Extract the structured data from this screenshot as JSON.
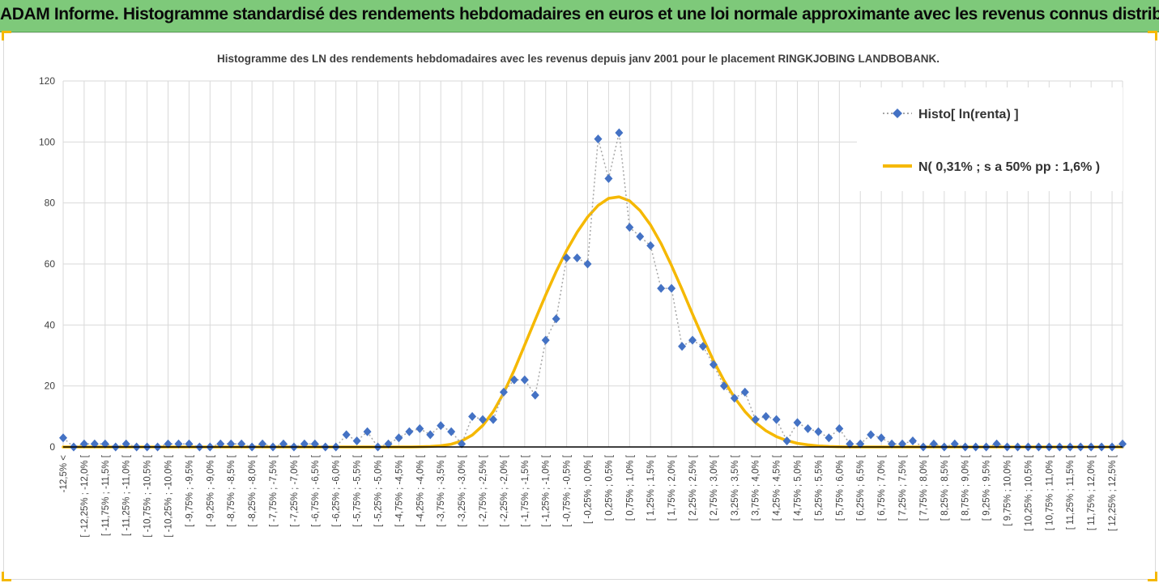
{
  "banner": {
    "title": "ADAM Informe. Histogramme standardisé des rendements hebdomadaires en euros et une loi normale approximante avec les revenus connus distribués"
  },
  "colors": {
    "banner": "#7ec97a",
    "frame_accent": "#f5b800",
    "histo": "#4472c4",
    "normal": "#f5b800",
    "grid": "#d9d9d9"
  },
  "chart_data": {
    "type": "line",
    "title": "Histogramme des LN des rendements hebdomadaires avec les revenus depuis janv 2001 pour le placement RINGKJOBING LANDBOBANK.",
    "xlabel": "",
    "ylabel": "",
    "ylim": [
      0,
      120
    ],
    "yticks": [
      0,
      20,
      40,
      60,
      80,
      100,
      120
    ],
    "grid": true,
    "legend_position": "top-right",
    "x_tick_labels": [
      "-12,5% <",
      "[ -12,25% ; -12,0% [",
      "[ -11,75% ; -11,5% [",
      "[ -11,25% ; -11,0% [",
      "[ -10,75% ; -10,5% [",
      "[ -10,25% ; -10,0% [",
      "[ -9,75% ; -9,5% [",
      "[ -9,25% ; -9,0% [",
      "[ -8,75% ; -8,5% [",
      "[ -8,25% ; -8,0% [",
      "[ -7,75% ; -7,5% [",
      "[ -7,25% ; -7,0% [",
      "[ -6,75% ; -6,5% [",
      "[ -6,25% ; -6,0% [",
      "[ -5,75% ; -5,5% [",
      "[ -5,25% ; -5,0% [",
      "[ -4,75% ; -4,5% [",
      "[ -4,25% ; -4,0% [",
      "[ -3,75% ; -3,5% [",
      "[ -3,25% ; -3,0% [",
      "[ -2,75% ; -2,5% [",
      "[ -2,25% ; -2,0% [",
      "[ -1,75% ; -1,5% [",
      "[ -1,25% ; -1,0% [",
      "[ -0,75% ; -0,5% [",
      "[ -0,25% ; 0,0% [",
      "[ 0,25% ; 0,5% [",
      "[ 0,75% ; 1,0% [",
      "[ 1,25% ; 1,5% [",
      "[ 1,75% ; 2,0% [",
      "[ 2,25% ; 2,5% [",
      "[ 2,75% ; 3,0% [",
      "[ 3,25% ; 3,5% [",
      "[ 3,75% ; 4,0% [",
      "[ 4,25% ; 4,5% [",
      "[ 4,75% ; 5,0% [",
      "[ 5,25% ; 5,5% [",
      "[ 5,75% ; 6,0% [",
      "[ 6,25% ; 6,5% [",
      "[ 6,75% ; 7,0% [",
      "[ 7,25% ; 7,5% [",
      "[ 7,75% ; 8,0% [",
      "[ 8,25% ; 8,5% [",
      "[ 8,75% ; 9,0% [",
      "[ 9,25% ; 9,5% [",
      "[ 9,75% ; 10,0% [",
      "[ 10,25% ; 10,5% [",
      "[ 10,75% ; 11,0% [",
      "[ 11,25% ; 11,5% [",
      "[ 11,75% ; 12,0% [",
      "[ 12,25% ; 12,5% ["
    ],
    "series": [
      {
        "name": "Histo[ ln(renta) ]",
        "style": "dotted-line-diamond-markers",
        "color": "#4472c4",
        "values": [
          3,
          0,
          1,
          1,
          1,
          0,
          1,
          0,
          0,
          0,
          1,
          1,
          1,
          0,
          0,
          1,
          1,
          1,
          0,
          1,
          0,
          1,
          0,
          1,
          1,
          0,
          0,
          4,
          2,
          5,
          0,
          1,
          3,
          5,
          6,
          4,
          7,
          5,
          1,
          10,
          9,
          9,
          18,
          22,
          22,
          17,
          35,
          42,
          62,
          62,
          60,
          101,
          88,
          103,
          72,
          69,
          66,
          52,
          52,
          33,
          35,
          33,
          27,
          20,
          16,
          18,
          9,
          10,
          9,
          2,
          8,
          6,
          5,
          3,
          6,
          1,
          1,
          4,
          3,
          1,
          1,
          2,
          0,
          1,
          0,
          1,
          0,
          0,
          0,
          1,
          0,
          0,
          0,
          0,
          0,
          0,
          0,
          0,
          0,
          0,
          0,
          1
        ]
      },
      {
        "name": "N( 0,31% ; s a 50% pp : 1,6% )",
        "style": "smooth-line",
        "color": "#f5b800",
        "values": [
          0,
          0,
          0,
          0,
          0,
          0,
          0,
          0,
          0,
          0,
          0,
          0,
          0,
          0,
          0,
          0,
          0,
          0,
          0,
          0,
          0,
          0,
          0,
          0,
          0,
          0,
          0,
          0,
          0,
          0,
          0,
          0,
          0,
          0,
          0.05,
          0.15,
          0.4,
          0.9,
          2.0,
          3.9,
          7.0,
          11.6,
          17.7,
          25.2,
          33.4,
          41.7,
          49.8,
          57.5,
          64.4,
          70.4,
          75.4,
          79.2,
          81.5,
          82.0,
          80.7,
          77.5,
          72.8,
          66.7,
          59.5,
          51.7,
          43.6,
          35.7,
          28.3,
          21.8,
          16.2,
          11.6,
          8.0,
          5.3,
          3.4,
          2.1,
          1.2,
          0.7,
          0.35,
          0.15,
          0.05,
          0,
          0,
          0,
          0,
          0,
          0,
          0,
          0,
          0,
          0,
          0,
          0,
          0,
          0,
          0,
          0,
          0,
          0,
          0,
          0,
          0,
          0,
          0,
          0,
          0,
          0,
          0
        ]
      }
    ]
  }
}
